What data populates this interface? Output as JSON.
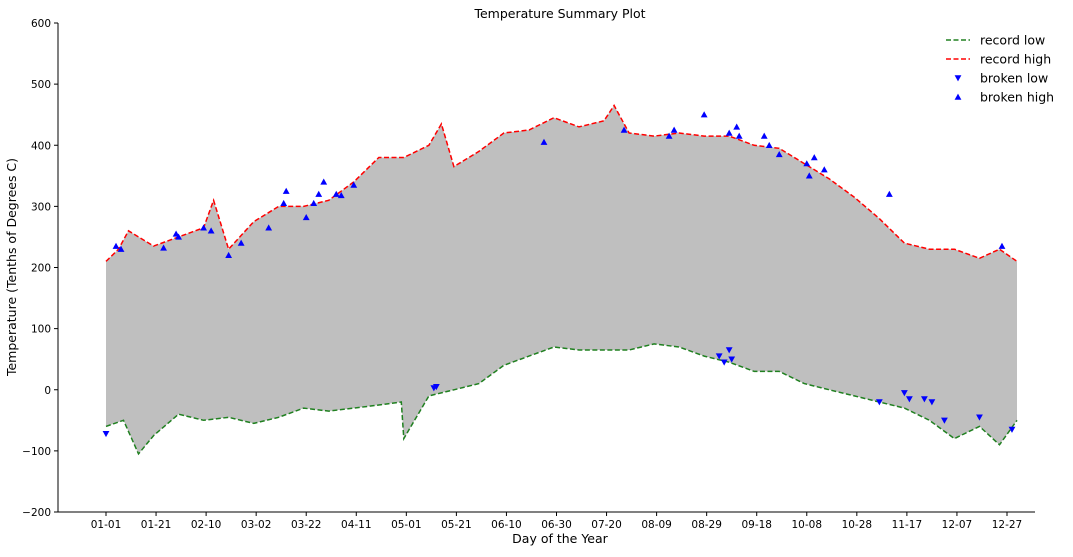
{
  "chart_data": {
    "type": "line",
    "title": "Temperature Summary Plot",
    "xlabel": "Day of the Year",
    "ylabel": "Temperature (Tenths of Degrees C)",
    "ylim": [
      -200,
      600
    ],
    "xlim": [
      1,
      365
    ],
    "y_ticks": [
      -200,
      -100,
      0,
      100,
      200,
      300,
      400,
      500,
      600
    ],
    "y_tick_labels": [
      "−200",
      "−100",
      "0",
      "100",
      "200",
      "300",
      "400",
      "500",
      "600"
    ],
    "x_ticks": [
      1,
      21,
      41,
      61,
      81,
      101,
      121,
      141,
      161,
      181,
      201,
      221,
      241,
      261,
      281,
      301,
      321,
      341,
      361
    ],
    "x_tick_labels": [
      "01-01",
      "01-21",
      "02-10",
      "03-02",
      "03-22",
      "04-11",
      "05-01",
      "05-21",
      "06-10",
      "06-30",
      "07-20",
      "08-09",
      "08-29",
      "09-18",
      "10-08",
      "10-28",
      "11-17",
      "12-07",
      "12-27"
    ],
    "grid": false,
    "legend_position": "top-right",
    "fill_between": {
      "color": "#bfbfbf"
    },
    "series": [
      {
        "name": "record low",
        "style": "dashed",
        "color": "#208020",
        "x": [
          1,
          8,
          14,
          20,
          30,
          40,
          50,
          60,
          70,
          80,
          90,
          100,
          110,
          119,
          120,
          130,
          140,
          150,
          160,
          170,
          180,
          190,
          200,
          210,
          220,
          230,
          240,
          250,
          260,
          270,
          280,
          290,
          300,
          310,
          320,
          330,
          340,
          350,
          358,
          365
        ],
        "values": [
          -60,
          -50,
          -105,
          -75,
          -40,
          -50,
          -45,
          -55,
          -45,
          -30,
          -35,
          -30,
          -25,
          -20,
          -80,
          -10,
          0,
          10,
          40,
          55,
          70,
          65,
          65,
          65,
          75,
          70,
          55,
          45,
          30,
          30,
          10,
          0,
          -10,
          -20,
          -30,
          -50,
          -80,
          -60,
          -90,
          -50
        ]
      },
      {
        "name": "record high",
        "style": "dashed",
        "color": "#ff0000",
        "x": [
          1,
          6,
          10,
          20,
          30,
          40,
          44,
          50,
          60,
          70,
          80,
          90,
          100,
          110,
          120,
          130,
          135,
          140,
          150,
          160,
          170,
          180,
          190,
          200,
          204,
          210,
          220,
          230,
          240,
          250,
          260,
          270,
          280,
          290,
          300,
          310,
          320,
          330,
          340,
          350,
          358,
          365
        ],
        "values": [
          210,
          230,
          260,
          235,
          250,
          265,
          310,
          230,
          275,
          300,
          300,
          310,
          340,
          380,
          380,
          400,
          435,
          365,
          390,
          420,
          425,
          445,
          430,
          440,
          465,
          420,
          415,
          420,
          415,
          415,
          400,
          395,
          370,
          345,
          315,
          280,
          240,
          230,
          230,
          215,
          230,
          210
        ]
      },
      {
        "name": "broken low",
        "style": "marker-down-triangle",
        "color": "#0000ff",
        "x": [
          1,
          132,
          133,
          246,
          248,
          250,
          251,
          310,
          320,
          322,
          328,
          331,
          336,
          350,
          363
        ],
        "values": [
          -72,
          3,
          5,
          55,
          45,
          65,
          50,
          -20,
          -5,
          -15,
          -15,
          -20,
          -50,
          -45,
          -65
        ]
      },
      {
        "name": "broken high",
        "style": "marker-up-triangle",
        "color": "#0000ff",
        "x": [
          5,
          7,
          24,
          29,
          30,
          40,
          43,
          50,
          55,
          66,
          72,
          73,
          81,
          84,
          86,
          88,
          93,
          95,
          100,
          176,
          208,
          226,
          228,
          240,
          250,
          253,
          254,
          264,
          266,
          270,
          281,
          282,
          284,
          288,
          314,
          359
        ],
        "values": [
          235,
          230,
          232,
          255,
          250,
          265,
          260,
          220,
          240,
          265,
          305,
          325,
          282,
          305,
          320,
          340,
          320,
          318,
          335,
          405,
          425,
          415,
          425,
          450,
          420,
          430,
          415,
          415,
          400,
          385,
          370,
          350,
          380,
          360,
          320,
          235
        ]
      }
    ]
  }
}
